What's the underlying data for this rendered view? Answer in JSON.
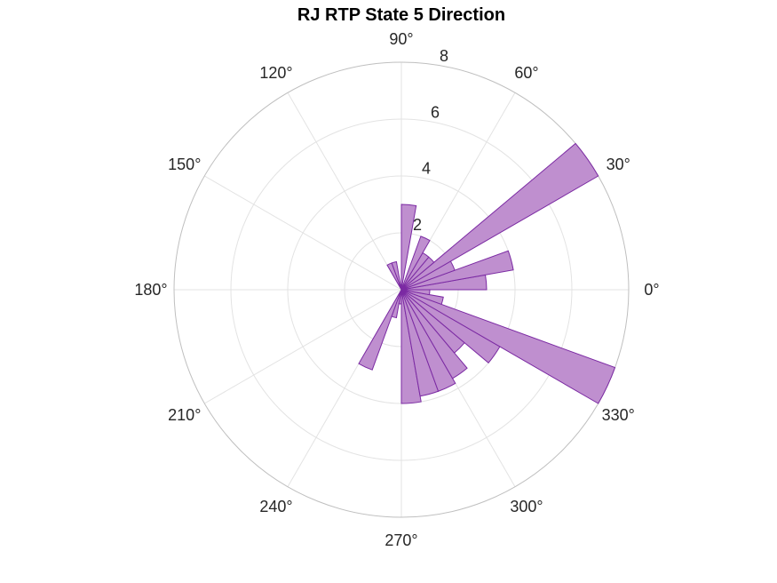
{
  "chart_data": {
    "type": "polar_histogram",
    "title": "RJ  RTP State 5 Direction",
    "bin_width_deg": 10,
    "rlim": [
      0,
      8
    ],
    "radial_ticks": [
      {
        "value": 2,
        "label": "2"
      },
      {
        "value": 4,
        "label": "4"
      },
      {
        "value": 6,
        "label": "6"
      },
      {
        "value": 8,
        "label": "8"
      }
    ],
    "angle_ticks": [
      {
        "value": 0,
        "label": "0°"
      },
      {
        "value": 30,
        "label": "30°"
      },
      {
        "value": 60,
        "label": "60°"
      },
      {
        "value": 90,
        "label": "90°"
      },
      {
        "value": 120,
        "label": "120°"
      },
      {
        "value": 150,
        "label": "150°"
      },
      {
        "value": 180,
        "label": "180°"
      },
      {
        "value": 210,
        "label": "210°"
      },
      {
        "value": 240,
        "label": "240°"
      },
      {
        "value": 270,
        "label": "270°"
      },
      {
        "value": 300,
        "label": "300°"
      },
      {
        "value": 330,
        "label": "330°"
      }
    ],
    "bins": [
      {
        "start": 0,
        "end": 10,
        "count": 3
      },
      {
        "start": 10,
        "end": 20,
        "count": 4
      },
      {
        "start": 20,
        "end": 30,
        "count": 2
      },
      {
        "start": 30,
        "end": 40,
        "count": 8
      },
      {
        "start": 40,
        "end": 50,
        "count": 1.5
      },
      {
        "start": 50,
        "end": 60,
        "count": 1.5
      },
      {
        "start": 60,
        "end": 70,
        "count": 2
      },
      {
        "start": 70,
        "end": 80,
        "count": 0
      },
      {
        "start": 80,
        "end": 90,
        "count": 3
      },
      {
        "start": 90,
        "end": 100,
        "count": 0
      },
      {
        "start": 100,
        "end": 110,
        "count": 1
      },
      {
        "start": 110,
        "end": 120,
        "count": 1
      },
      {
        "start": 210,
        "end": 220,
        "count": 0
      },
      {
        "start": 240,
        "end": 250,
        "count": 3
      },
      {
        "start": 250,
        "end": 260,
        "count": 1
      },
      {
        "start": 260,
        "end": 270,
        "count": 0.5
      },
      {
        "start": 270,
        "end": 280,
        "count": 4
      },
      {
        "start": 280,
        "end": 290,
        "count": 3.8
      },
      {
        "start": 290,
        "end": 300,
        "count": 3.8
      },
      {
        "start": 300,
        "end": 310,
        "count": 3.6
      },
      {
        "start": 310,
        "end": 320,
        "count": 2.9
      },
      {
        "start": 320,
        "end": 330,
        "count": 4
      },
      {
        "start": 330,
        "end": 340,
        "count": 8
      },
      {
        "start": 340,
        "end": 350,
        "count": 1.5
      },
      {
        "start": 350,
        "end": 360,
        "count": 1
      }
    ],
    "bar_fill": "#bf8fcf",
    "bar_stroke": "#7b2aa3",
    "grid_color": "#e3e3e3",
    "axis_color": "#bfbfbf",
    "grid": true
  }
}
